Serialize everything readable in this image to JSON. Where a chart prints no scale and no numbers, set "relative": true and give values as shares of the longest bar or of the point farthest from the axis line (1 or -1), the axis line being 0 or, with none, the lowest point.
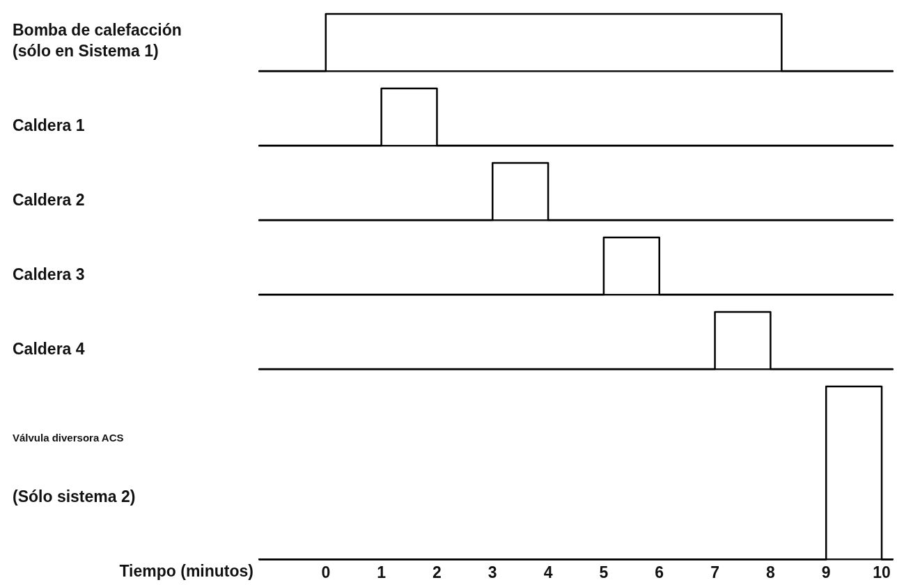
{
  "chart_data": [
    {
      "type": "step",
      "ylabel": "Bomba de calefacción (sólo en Sistema 1)",
      "x": [
        -1.2,
        0,
        8.2,
        10.2
      ],
      "values": [
        0,
        1,
        0,
        0
      ],
      "color": "#000000",
      "relative": true,
      "xlim": [
        -1.2,
        10.2
      ],
      "tick_labels": false,
      "marker": "none"
    },
    {
      "type": "step",
      "ylabel": "Caldera 1",
      "x": [
        -1.2,
        1,
        2,
        10.2
      ],
      "values": [
        0,
        1,
        0,
        0
      ],
      "color": "#000000",
      "relative": true,
      "xlim": [
        -1.2,
        10.2
      ],
      "tick_labels": false,
      "marker": "none"
    },
    {
      "type": "step",
      "ylabel": "Caldera 2",
      "x": [
        -1.2,
        3,
        4,
        10.2
      ],
      "values": [
        0,
        1,
        0,
        0
      ],
      "color": "#000000",
      "relative": true,
      "xlim": [
        -1.2,
        10.2
      ],
      "tick_labels": false,
      "marker": "none"
    },
    {
      "type": "step",
      "ylabel": "Caldera 3",
      "x": [
        -1.2,
        5,
        6,
        10.2
      ],
      "values": [
        0,
        1,
        0,
        0
      ],
      "color": "#000000",
      "relative": true,
      "xlim": [
        -1.2,
        10.2
      ],
      "tick_labels": false,
      "marker": "none"
    },
    {
      "type": "step",
      "ylabel": "Caldera 4",
      "x": [
        -1.2,
        7,
        8,
        10.2
      ],
      "values": [
        0,
        1,
        0,
        0
      ],
      "color": "#000000",
      "relative": true,
      "xlim": [
        -1.2,
        10.2
      ],
      "tick_labels": false,
      "marker": "none"
    },
    {
      "type": "step",
      "ylabel": "Válvula diversora ACS",
      "annotations": [
        "(Sólo sistema 2)"
      ],
      "xlabel": "Tiempo (minutos)",
      "x": [
        -1.2,
        9,
        10,
        10.2
      ],
      "values": [
        0,
        1,
        0,
        0
      ],
      "color": "#000000",
      "relative": true,
      "xlim": [
        -1.2,
        10.2
      ],
      "xticks": [
        0,
        1,
        2,
        3,
        4,
        5,
        6,
        7,
        8,
        9,
        10
      ],
      "tick_labels": "x",
      "marker": "none"
    }
  ]
}
